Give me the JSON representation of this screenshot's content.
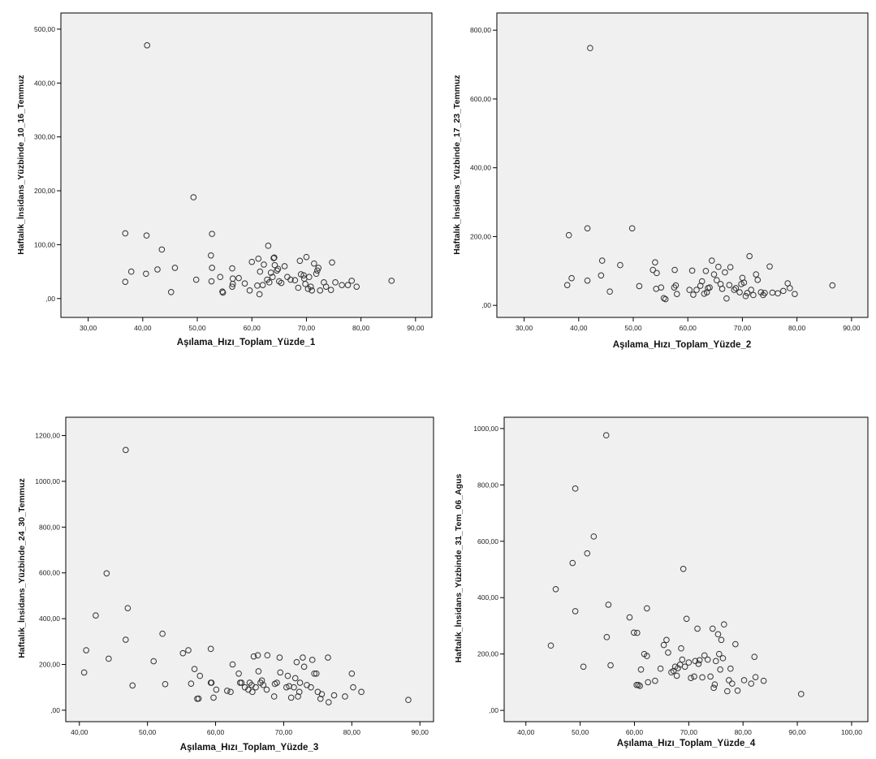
{
  "chart_data": [
    {
      "type": "scatter",
      "xlabel": "Aşılama_Hızı_Toplam_Yüzde_1",
      "ylabel": "Haftalık_İnsidans_Yüzbinde_10_16_Temmuz",
      "xlim": [
        25,
        93
      ],
      "ylim": [
        -35,
        530
      ],
      "xticks": [
        30,
        40,
        50,
        60,
        70,
        80,
        90
      ],
      "xtick_labels": [
        "30,00",
        "40,00",
        "50,00",
        "60,00",
        "70,00",
        "80,00",
        "90,00"
      ],
      "yticks": [
        0,
        100,
        200,
        300,
        400,
        500
      ],
      "ytick_labels": [
        ",00",
        "100,00",
        "200,00",
        "300,00",
        "400,00",
        "500,00"
      ],
      "grid": false,
      "points": [
        [
          40.8,
          470
        ],
        [
          49.3,
          188
        ],
        [
          36.8,
          121
        ],
        [
          40.7,
          117
        ],
        [
          52.7,
          120
        ],
        [
          43.5,
          91
        ],
        [
          63.0,
          98
        ],
        [
          37.9,
          50
        ],
        [
          36.8,
          31
        ],
        [
          40.6,
          46
        ],
        [
          42.7,
          54
        ],
        [
          45.9,
          57
        ],
        [
          45.2,
          12
        ],
        [
          49.8,
          35
        ],
        [
          52.5,
          80
        ],
        [
          52.7,
          57
        ],
        [
          52.6,
          32
        ],
        [
          54.2,
          40
        ],
        [
          54.6,
          13
        ],
        [
          54.7,
          11
        ],
        [
          56.4,
          56
        ],
        [
          56.5,
          37
        ],
        [
          56.4,
          22
        ],
        [
          56.5,
          27
        ],
        [
          57.6,
          38
        ],
        [
          58.7,
          28
        ],
        [
          59.6,
          15
        ],
        [
          60.0,
          68
        ],
        [
          61.0,
          24
        ],
        [
          61.2,
          74
        ],
        [
          61.5,
          50
        ],
        [
          61.4,
          8
        ],
        [
          62.0,
          25
        ],
        [
          62.2,
          63
        ],
        [
          62.8,
          35
        ],
        [
          63.2,
          30
        ],
        [
          63.5,
          48
        ],
        [
          63.8,
          40
        ],
        [
          64.0,
          75
        ],
        [
          64.1,
          76
        ],
        [
          64.2,
          62
        ],
        [
          64.6,
          52
        ],
        [
          64.8,
          55
        ],
        [
          65.0,
          32
        ],
        [
          65.4,
          29
        ],
        [
          66.0,
          60
        ],
        [
          66.5,
          40
        ],
        [
          67.1,
          35
        ],
        [
          67.9,
          34
        ],
        [
          68.5,
          20
        ],
        [
          68.8,
          70
        ],
        [
          69.0,
          45
        ],
        [
          69.5,
          43
        ],
        [
          69.6,
          37
        ],
        [
          69.8,
          27
        ],
        [
          70.0,
          77
        ],
        [
          70.3,
          18
        ],
        [
          70.5,
          40
        ],
        [
          70.8,
          22
        ],
        [
          71.0,
          15
        ],
        [
          71.4,
          65
        ],
        [
          71.8,
          46
        ],
        [
          72.0,
          52
        ],
        [
          72.2,
          57
        ],
        [
          72.5,
          15
        ],
        [
          73.2,
          30
        ],
        [
          73.6,
          22
        ],
        [
          74.5,
          16
        ],
        [
          74.7,
          67
        ],
        [
          75.3,
          30
        ],
        [
          76.5,
          25
        ],
        [
          77.6,
          25
        ],
        [
          78.3,
          33
        ],
        [
          79.2,
          22
        ],
        [
          85.6,
          33
        ]
      ]
    },
    {
      "type": "scatter",
      "xlabel": "Aşılama_Hızı_Toplam_Yüzde_2",
      "ylabel": "Haftalık_İnsidans_Yüzbinde_17_23_Temmuz",
      "xlim": [
        25,
        93
      ],
      "ylim": [
        -35,
        850
      ],
      "xticks": [
        30,
        40,
        50,
        60,
        70,
        80,
        90
      ],
      "xtick_labels": [
        "30,00",
        "40,00",
        "50,00",
        "60,00",
        "70,00",
        "80,00",
        "90,00"
      ],
      "yticks": [
        0,
        200,
        400,
        600,
        800
      ],
      "ytick_labels": [
        ",00",
        "200,00",
        "400,00",
        "600,00",
        "800,00"
      ],
      "grid": false,
      "points": [
        [
          42.1,
          748
        ],
        [
          41.6,
          224
        ],
        [
          49.8,
          224
        ],
        [
          38.2,
          204
        ],
        [
          44.3,
          130
        ],
        [
          47.6,
          117
        ],
        [
          53.6,
          103
        ],
        [
          54.0,
          125
        ],
        [
          54.3,
          94
        ],
        [
          57.6,
          103
        ],
        [
          51.1,
          56
        ],
        [
          37.9,
          59
        ],
        [
          38.7,
          79
        ],
        [
          41.6,
          72
        ],
        [
          44.1,
          87
        ],
        [
          45.7,
          40
        ],
        [
          54.2,
          48
        ],
        [
          55.1,
          52
        ],
        [
          55.6,
          21
        ],
        [
          55.9,
          18
        ],
        [
          57.5,
          52
        ],
        [
          57.8,
          58
        ],
        [
          58.0,
          33
        ],
        [
          60.3,
          45
        ],
        [
          60.8,
          101
        ],
        [
          61.0,
          31
        ],
        [
          61.6,
          45
        ],
        [
          62.3,
          57
        ],
        [
          62.6,
          70
        ],
        [
          63.0,
          34
        ],
        [
          63.3,
          100
        ],
        [
          63.5,
          38
        ],
        [
          63.7,
          50
        ],
        [
          64.0,
          52
        ],
        [
          64.4,
          130
        ],
        [
          64.8,
          90
        ],
        [
          65.3,
          73
        ],
        [
          65.6,
          112
        ],
        [
          66.0,
          62
        ],
        [
          66.3,
          48
        ],
        [
          66.8,
          96
        ],
        [
          67.1,
          20
        ],
        [
          67.6,
          59
        ],
        [
          67.8,
          111
        ],
        [
          68.5,
          45
        ],
        [
          68.8,
          50
        ],
        [
          69.5,
          38
        ],
        [
          69.8,
          62
        ],
        [
          70.0,
          80
        ],
        [
          70.3,
          66
        ],
        [
          70.6,
          27
        ],
        [
          70.9,
          36
        ],
        [
          71.3,
          143
        ],
        [
          71.6,
          45
        ],
        [
          72.0,
          30
        ],
        [
          72.5,
          90
        ],
        [
          72.8,
          74
        ],
        [
          73.4,
          38
        ],
        [
          73.8,
          30
        ],
        [
          74.1,
          36
        ],
        [
          75.0,
          113
        ],
        [
          75.5,
          37
        ],
        [
          76.5,
          35
        ],
        [
          77.5,
          42
        ],
        [
          78.3,
          64
        ],
        [
          78.7,
          50
        ],
        [
          79.6,
          33
        ],
        [
          86.5,
          58
        ]
      ]
    },
    {
      "type": "scatter",
      "xlabel": "Aşılama_Hızı_Toplam_Yüzde_3",
      "ylabel": "Haftalık_İnsidans_Yüzbinde_24_30_Temmuz",
      "xlim": [
        38,
        92
      ],
      "ylim": [
        -50,
        1280
      ],
      "xticks": [
        40,
        50,
        60,
        70,
        80,
        90
      ],
      "xtick_labels": [
        "40,00",
        "50,00",
        "60,00",
        "70,00",
        "80,00",
        "90,00"
      ],
      "yticks": [
        0,
        200,
        400,
        600,
        800,
        1000,
        1200
      ],
      "ytick_labels": [
        ",00",
        "200,00",
        "400,00",
        "600,00",
        "800,00",
        "1000,00",
        "1200,00"
      ],
      "grid": false,
      "points": [
        [
          46.8,
          1137
        ],
        [
          44.0,
          598
        ],
        [
          47.1,
          446
        ],
        [
          42.4,
          414
        ],
        [
          46.8,
          308
        ],
        [
          52.2,
          334
        ],
        [
          41.0,
          262
        ],
        [
          40.7,
          165
        ],
        [
          44.3,
          225
        ],
        [
          47.8,
          108
        ],
        [
          50.9,
          214
        ],
        [
          52.6,
          114
        ],
        [
          55.2,
          249
        ],
        [
          56.0,
          262
        ],
        [
          59.3,
          268
        ],
        [
          56.4,
          116
        ],
        [
          56.9,
          180
        ],
        [
          57.3,
          50
        ],
        [
          57.5,
          51
        ],
        [
          57.7,
          150
        ],
        [
          59.3,
          120
        ],
        [
          59.4,
          120
        ],
        [
          59.7,
          55
        ],
        [
          60.1,
          90
        ],
        [
          61.7,
          85
        ],
        [
          62.2,
          80
        ],
        [
          62.5,
          200
        ],
        [
          63.4,
          160
        ],
        [
          63.6,
          120
        ],
        [
          63.8,
          120
        ],
        [
          64.3,
          100
        ],
        [
          64.8,
          90
        ],
        [
          65.0,
          120
        ],
        [
          65.3,
          110
        ],
        [
          65.4,
          80
        ],
        [
          65.6,
          235
        ],
        [
          65.9,
          100
        ],
        [
          66.2,
          240
        ],
        [
          66.3,
          170
        ],
        [
          66.6,
          120
        ],
        [
          66.8,
          130
        ],
        [
          67.0,
          110
        ],
        [
          67.5,
          90
        ],
        [
          67.6,
          240
        ],
        [
          68.6,
          60
        ],
        [
          68.7,
          115
        ],
        [
          69.0,
          120
        ],
        [
          69.4,
          230
        ],
        [
          69.5,
          165
        ],
        [
          70.4,
          100
        ],
        [
          70.6,
          150
        ],
        [
          70.8,
          105
        ],
        [
          71.1,
          55
        ],
        [
          71.5,
          100
        ],
        [
          71.7,
          140
        ],
        [
          71.9,
          210
        ],
        [
          72.1,
          60
        ],
        [
          72.3,
          80
        ],
        [
          72.4,
          120
        ],
        [
          72.8,
          230
        ],
        [
          73.0,
          190
        ],
        [
          73.4,
          110
        ],
        [
          74.0,
          100
        ],
        [
          74.2,
          220
        ],
        [
          74.5,
          160
        ],
        [
          74.8,
          160
        ],
        [
          75.0,
          80
        ],
        [
          75.4,
          50
        ],
        [
          75.6,
          70
        ],
        [
          76.5,
          230
        ],
        [
          76.6,
          35
        ],
        [
          77.4,
          65
        ],
        [
          79.0,
          60
        ],
        [
          80.0,
          160
        ],
        [
          80.2,
          100
        ],
        [
          81.4,
          80
        ],
        [
          88.3,
          45
        ]
      ]
    },
    {
      "type": "scatter",
      "xlabel": "Aşılama_Hızı_Toplam_Yüzde_4",
      "ylabel": "Haftalık_İnsidans_Yüzbinde_31_Tem_06_Agus",
      "xlim": [
        36,
        103
      ],
      "ylim": [
        -40,
        1040
      ],
      "xticks": [
        40,
        50,
        60,
        70,
        80,
        90,
        100
      ],
      "xtick_labels": [
        "40,00",
        "50,00",
        "60,00",
        "70,00",
        "80,00",
        "90,00",
        "100,00"
      ],
      "yticks": [
        0,
        200,
        400,
        600,
        800,
        1000
      ],
      "ytick_labels": [
        ",00",
        "200,00",
        "400,00",
        "600,00",
        "800,00",
        "1000,00"
      ],
      "grid": false,
      "points": [
        [
          54.8,
          976
        ],
        [
          49.1,
          787
        ],
        [
          52.5,
          617
        ],
        [
          48.6,
          523
        ],
        [
          51.3,
          557
        ],
        [
          45.5,
          430
        ],
        [
          69.0,
          502
        ],
        [
          55.2,
          375
        ],
        [
          49.1,
          352
        ],
        [
          59.1,
          330
        ],
        [
          62.3,
          362
        ],
        [
          44.6,
          230
        ],
        [
          54.9,
          260
        ],
        [
          59.9,
          276
        ],
        [
          60.5,
          275
        ],
        [
          55.6,
          160
        ],
        [
          50.6,
          155
        ],
        [
          60.4,
          90
        ],
        [
          60.7,
          90
        ],
        [
          61.0,
          87
        ],
        [
          61.8,
          200
        ],
        [
          62.3,
          193
        ],
        [
          61.2,
          145
        ],
        [
          62.5,
          100
        ],
        [
          63.8,
          105
        ],
        [
          64.8,
          148
        ],
        [
          65.4,
          232
        ],
        [
          65.9,
          250
        ],
        [
          66.2,
          205
        ],
        [
          66.8,
          135
        ],
        [
          67.2,
          140
        ],
        [
          67.5,
          155
        ],
        [
          67.8,
          123
        ],
        [
          68.0,
          150
        ],
        [
          68.4,
          162
        ],
        [
          68.6,
          220
        ],
        [
          68.8,
          180
        ],
        [
          69.3,
          155
        ],
        [
          69.6,
          325
        ],
        [
          70.0,
          170
        ],
        [
          70.4,
          115
        ],
        [
          71.0,
          120
        ],
        [
          71.2,
          175
        ],
        [
          71.6,
          290
        ],
        [
          71.8,
          165
        ],
        [
          72.0,
          178
        ],
        [
          72.5,
          117
        ],
        [
          72.9,
          195
        ],
        [
          73.5,
          180
        ],
        [
          74.0,
          120
        ],
        [
          74.4,
          290
        ],
        [
          74.6,
          80
        ],
        [
          74.8,
          92
        ],
        [
          75.0,
          175
        ],
        [
          75.4,
          270
        ],
        [
          75.6,
          200
        ],
        [
          75.8,
          145
        ],
        [
          76.0,
          250
        ],
        [
          76.3,
          185
        ],
        [
          76.5,
          305
        ],
        [
          77.1,
          68
        ],
        [
          77.4,
          107
        ],
        [
          77.7,
          148
        ],
        [
          78.0,
          95
        ],
        [
          78.6,
          235
        ],
        [
          79.0,
          70
        ],
        [
          80.2,
          107
        ],
        [
          81.5,
          95
        ],
        [
          82.1,
          190
        ],
        [
          82.3,
          118
        ],
        [
          83.8,
          105
        ],
        [
          90.7,
          58
        ]
      ]
    }
  ]
}
